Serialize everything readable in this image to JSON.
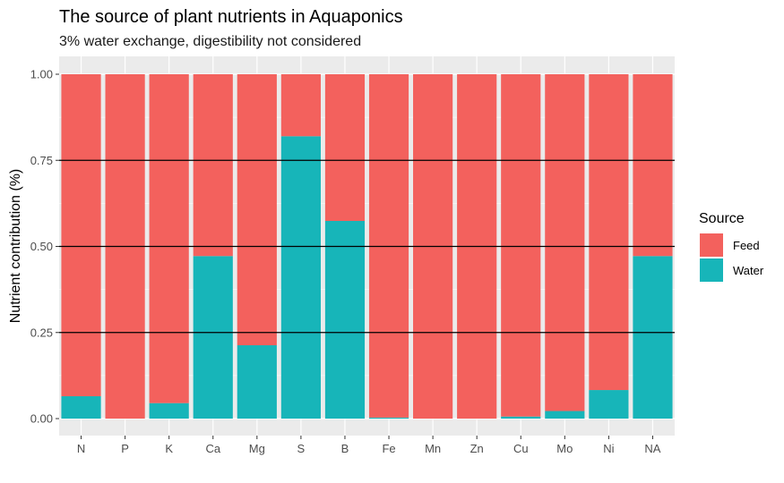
{
  "chart_data": {
    "type": "bar",
    "stacked": true,
    "title": "The source of plant nutrients in Aquaponics",
    "subtitle": "3% water exchange, digestibility not considered",
    "xlabel": "",
    "ylabel": "Nutrient contribution (%)",
    "ylim": [
      0,
      1
    ],
    "yticks": [
      "0.00",
      "0.25",
      "0.50",
      "0.75",
      "1.00"
    ],
    "ytick_values": [
      0,
      0.25,
      0.5,
      0.75,
      1
    ],
    "reference_lines": [
      0.25,
      0.5,
      0.75
    ],
    "categories": [
      "N",
      "P",
      "K",
      "Ca",
      "Mg",
      "S",
      "B",
      "Fe",
      "Mn",
      "Zn",
      "Cu",
      "Mo",
      "Ni",
      "NA"
    ],
    "legend": {
      "title": "Source",
      "position": "right"
    },
    "series": [
      {
        "name": "Water",
        "color": "#17B5B9",
        "values": [
          0.065,
          0.0,
          0.045,
          0.472,
          0.213,
          0.82,
          0.574,
          0.003,
          0.0,
          0.0,
          0.006,
          0.022,
          0.083,
          0.472
        ]
      },
      {
        "name": "Feed",
        "color": "#F3615D",
        "values": [
          0.935,
          1.0,
          0.955,
          0.528,
          0.787,
          0.18,
          0.426,
          0.997,
          1.0,
          1.0,
          0.994,
          0.978,
          0.917,
          0.528
        ]
      }
    ],
    "grid": true,
    "panel_color": "#EBEBEB"
  }
}
